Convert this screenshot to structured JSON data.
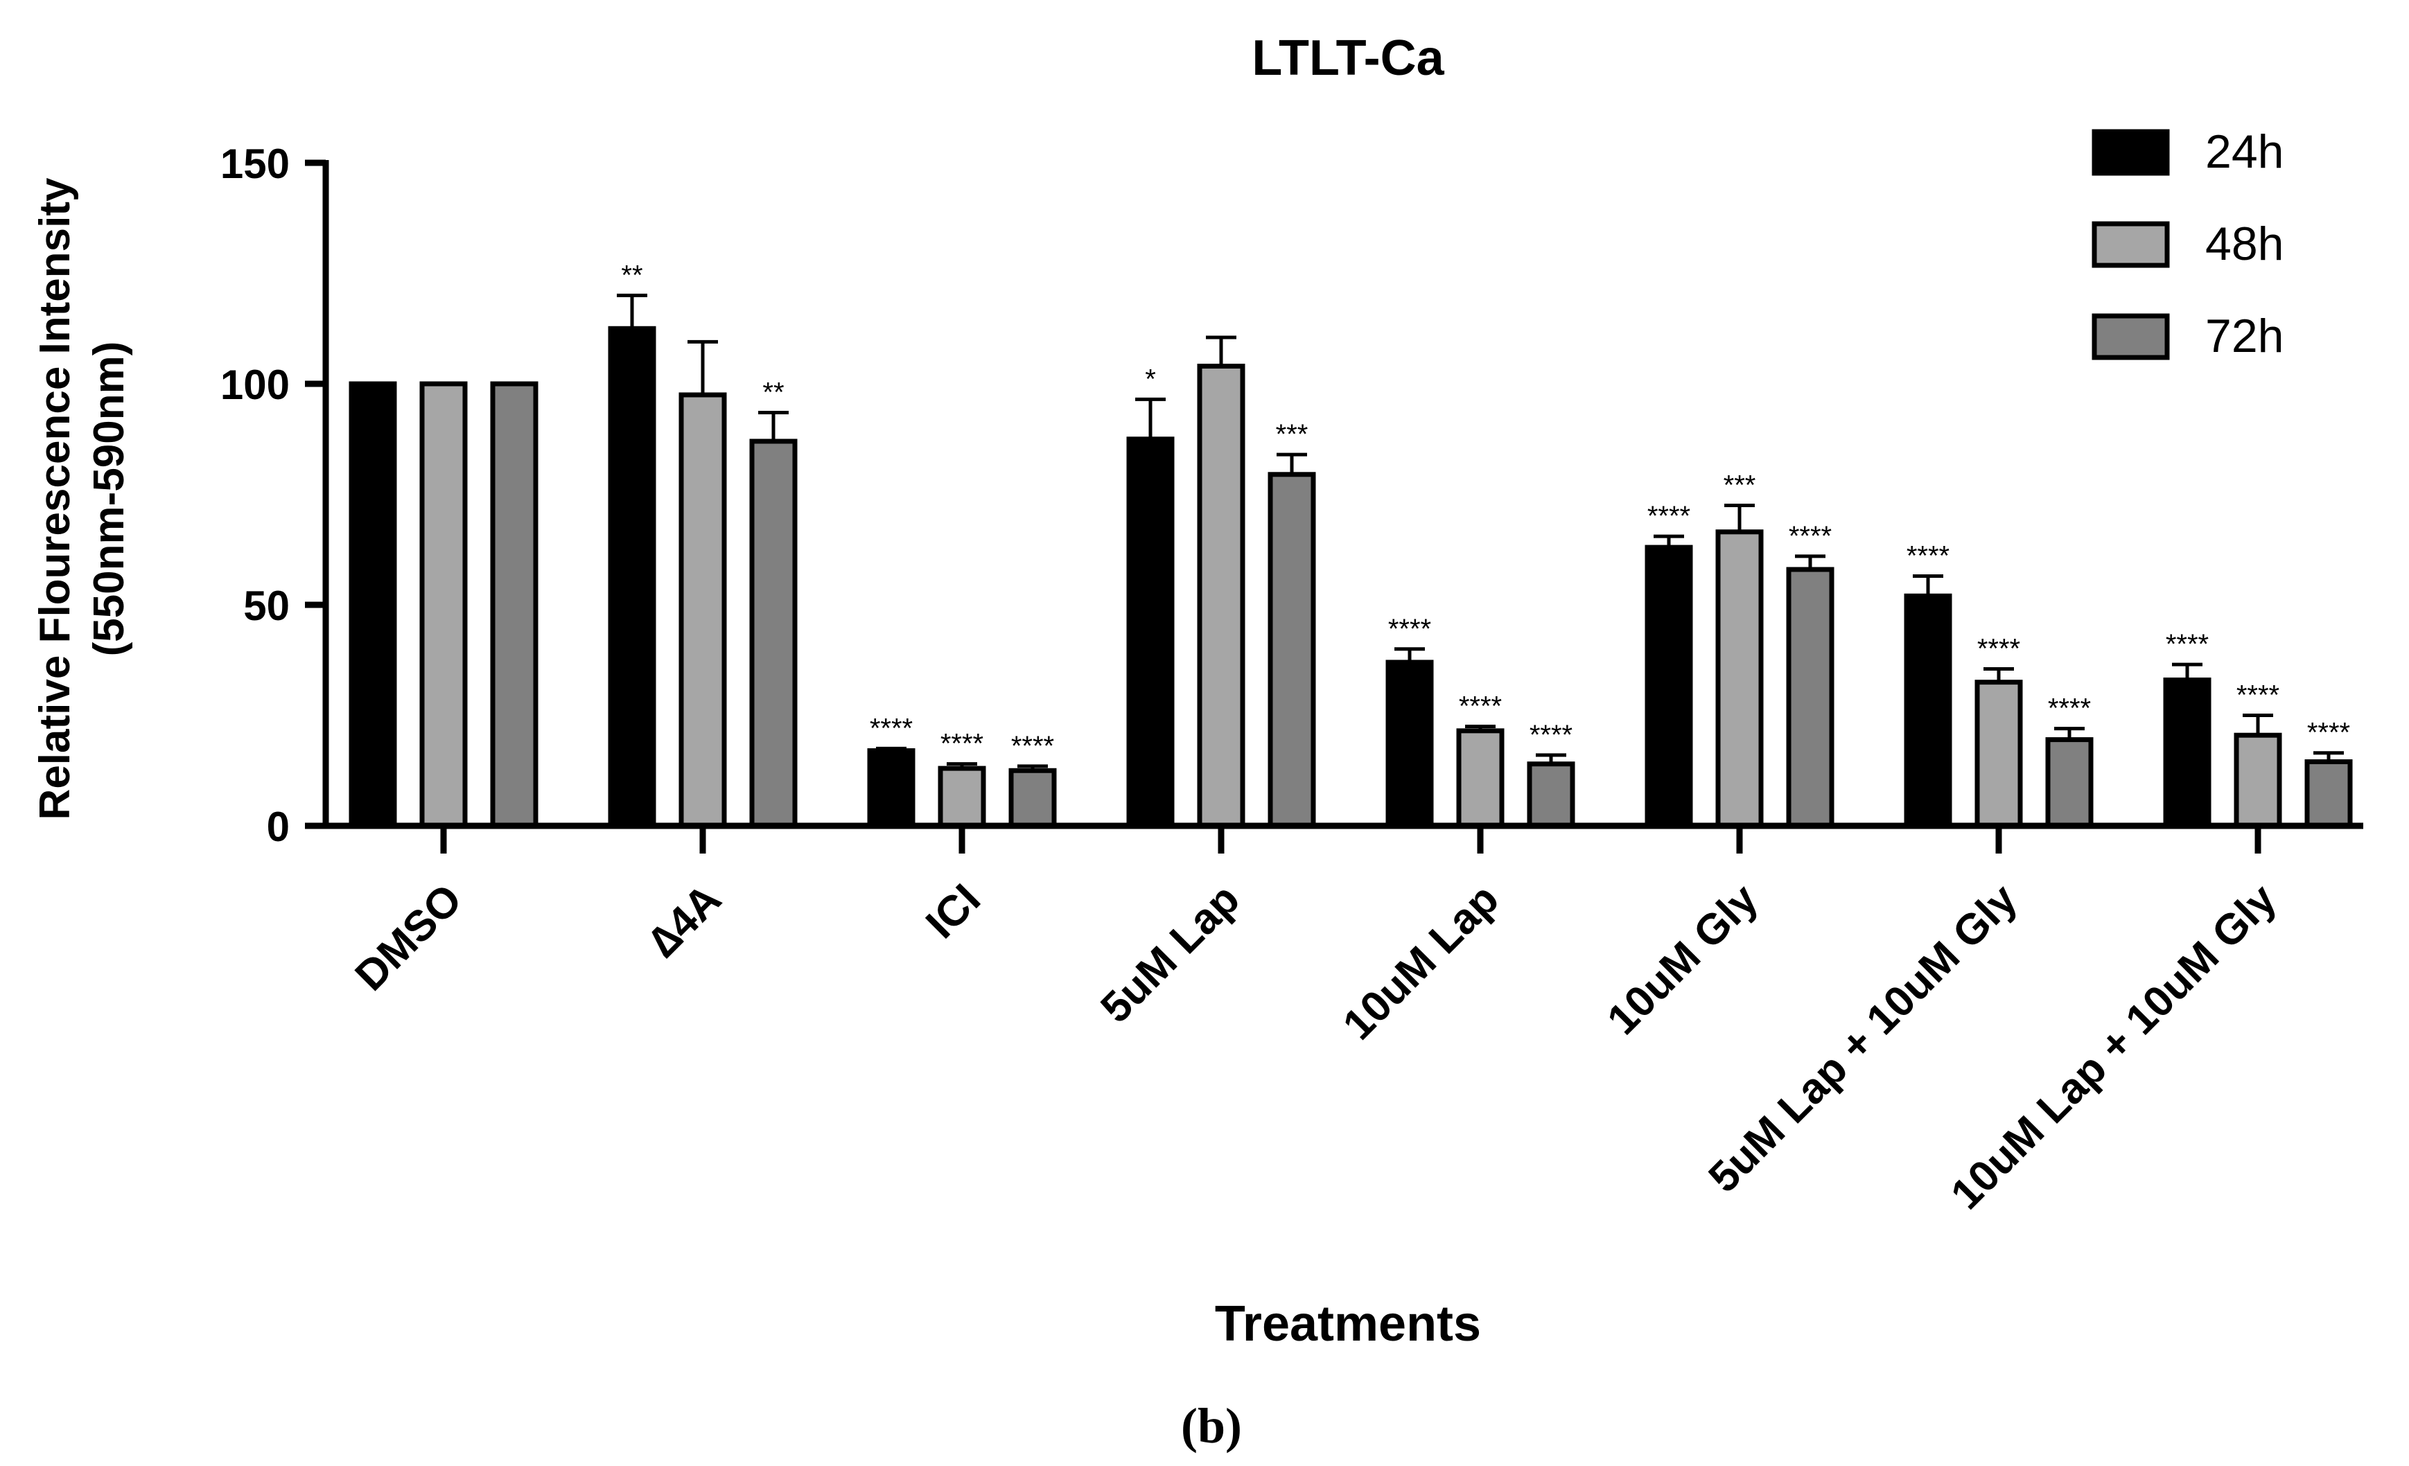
{
  "chart_data": {
    "type": "bar",
    "title": "LTLT-Ca",
    "xlabel": "Treatments",
    "ylabel_line1": "Relative Flourescence Intensity",
    "ylabel_line2": "(550nm-590nm)",
    "ylim": [
      0,
      150
    ],
    "yticks": [
      "0",
      "50",
      "100",
      "150"
    ],
    "ytick_values": [
      0,
      50,
      100,
      150
    ],
    "legend_position": "top-right",
    "categories": [
      "DMSO",
      "∆4A",
      "ICI",
      "5uM Lap",
      "10uM Lap",
      "10uM Gly",
      "5uM Lap + 10uM Gly",
      "10uM Lap + 10uM Gly"
    ],
    "series": [
      {
        "name": "24h",
        "color": "#000000",
        "values": [
          100,
          112.5,
          17,
          87.5,
          37,
          63,
          52,
          33
        ],
        "errors": [
          0,
          7.5,
          0.5,
          9,
          3,
          2.5,
          4.5,
          3.5
        ],
        "significance": [
          "",
          "**",
          "****",
          "*",
          "****",
          "****",
          "****",
          "****"
        ]
      },
      {
        "name": "48h",
        "color": "#a6a6a6",
        "values": [
          100,
          97.5,
          13,
          104,
          21.5,
          66.5,
          32.5,
          20.5
        ],
        "errors": [
          0,
          12,
          1,
          6.5,
          1,
          6,
          3,
          4.5
        ],
        "significance": [
          "",
          "",
          "****",
          "",
          "****",
          "***",
          "****",
          "****"
        ]
      },
      {
        "name": "72h",
        "color": "#808080",
        "values": [
          100,
          87,
          12.5,
          79.5,
          14,
          58,
          19.5,
          14.5
        ],
        "errors": [
          0,
          6.5,
          1,
          4.5,
          2,
          3,
          2.5,
          2
        ],
        "significance": [
          "",
          "**",
          "****",
          "***",
          "****",
          "****",
          "****",
          "****"
        ]
      }
    ]
  },
  "caption": "(b)"
}
